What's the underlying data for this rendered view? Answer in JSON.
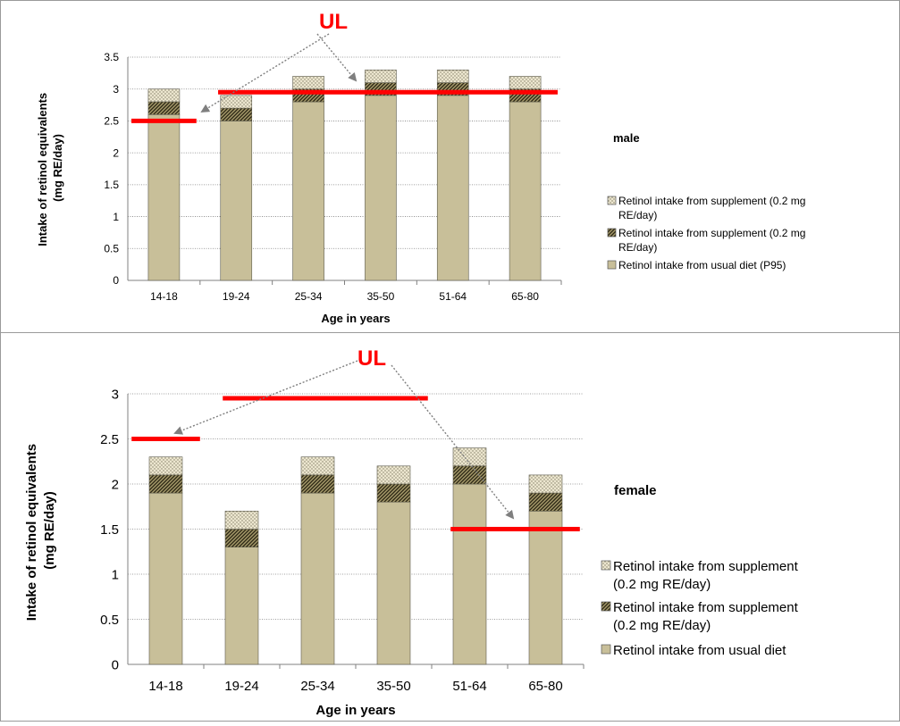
{
  "colors": {
    "diet": "#c8bf99",
    "supplement_a": "#e8e2c8",
    "supplement_b": "#57502f",
    "ul_line": "#ff0000",
    "ul_text": "#ff0000",
    "arrow": "#7f7f7f",
    "grid": "#808080",
    "frame": "#9a9a9a"
  },
  "chart_data": [
    {
      "type": "bar",
      "stacked": true,
      "panel_label": "male",
      "ul_label": "UL",
      "categories": [
        "14-18",
        "19-24",
        "25-34",
        "35-50",
        "51-64",
        "65-80"
      ],
      "series": [
        {
          "name": "Retinol intake from usual diet (P95)",
          "key": "diet",
          "values": [
            2.6,
            2.5,
            2.8,
            2.9,
            2.9,
            2.8
          ]
        },
        {
          "name": "Retinol intake from supplement (0.2 mg RE/day)",
          "key": "supplement_b",
          "values": [
            0.2,
            0.2,
            0.2,
            0.2,
            0.2,
            0.2
          ]
        },
        {
          "name": "Retinol intake from supplement (0.2 mg RE/day)",
          "key": "supplement_a",
          "values": [
            0.2,
            0.2,
            0.2,
            0.2,
            0.2,
            0.2
          ]
        }
      ],
      "legend_order": [
        2,
        1,
        0
      ],
      "ylabel": "Intake of retinol equivalents (mg RE/day)",
      "xlabel": "Age in years",
      "ylim": [
        0,
        3.5
      ],
      "yticks": [
        "0",
        "0.5",
        "1",
        "1.5",
        "2",
        "2.5",
        "3",
        "3.5"
      ],
      "grid": true,
      "legend_position": "right",
      "ul_levels": [
        {
          "from": "14-18",
          "to": "14-18",
          "value": 2.5
        },
        {
          "from": "19-24",
          "to": "65-80",
          "value": 2.95
        }
      ]
    },
    {
      "type": "bar",
      "stacked": true,
      "panel_label": "female",
      "ul_label": "UL",
      "categories": [
        "14-18",
        "19-24",
        "25-34",
        "35-50",
        "51-64",
        "65-80"
      ],
      "series": [
        {
          "name": "Retinol intake from usual diet (P95)",
          "key": "diet",
          "values": [
            1.9,
            1.3,
            1.9,
            1.8,
            2.0,
            1.7
          ]
        },
        {
          "name": "Retinol intake from supplement (0.2 mg RE/day)",
          "key": "supplement_b",
          "values": [
            0.2,
            0.2,
            0.2,
            0.2,
            0.2,
            0.2
          ]
        },
        {
          "name": "Retinol intake from supplement (0.2 mg RE/day)",
          "key": "supplement_a",
          "values": [
            0.2,
            0.2,
            0.2,
            0.2,
            0.2,
            0.2
          ]
        }
      ],
      "legend_order": [
        2,
        1,
        0
      ],
      "ylabel": "Intake of retinol equivalents (mg RE/day)",
      "xlabel": "Age in years",
      "ylim": [
        0,
        3
      ],
      "yticks": [
        "0",
        "0.5",
        "1",
        "1.5",
        "2",
        "2.5",
        "3"
      ],
      "grid": true,
      "legend_position": "right",
      "ul_levels": [
        {
          "from": "14-18",
          "to": "14-18",
          "value": 2.5
        },
        {
          "from": "19-24",
          "to": "35-50",
          "value": 2.95
        },
        {
          "from": "51-64",
          "to": "65-80",
          "value": 1.5
        }
      ]
    }
  ]
}
